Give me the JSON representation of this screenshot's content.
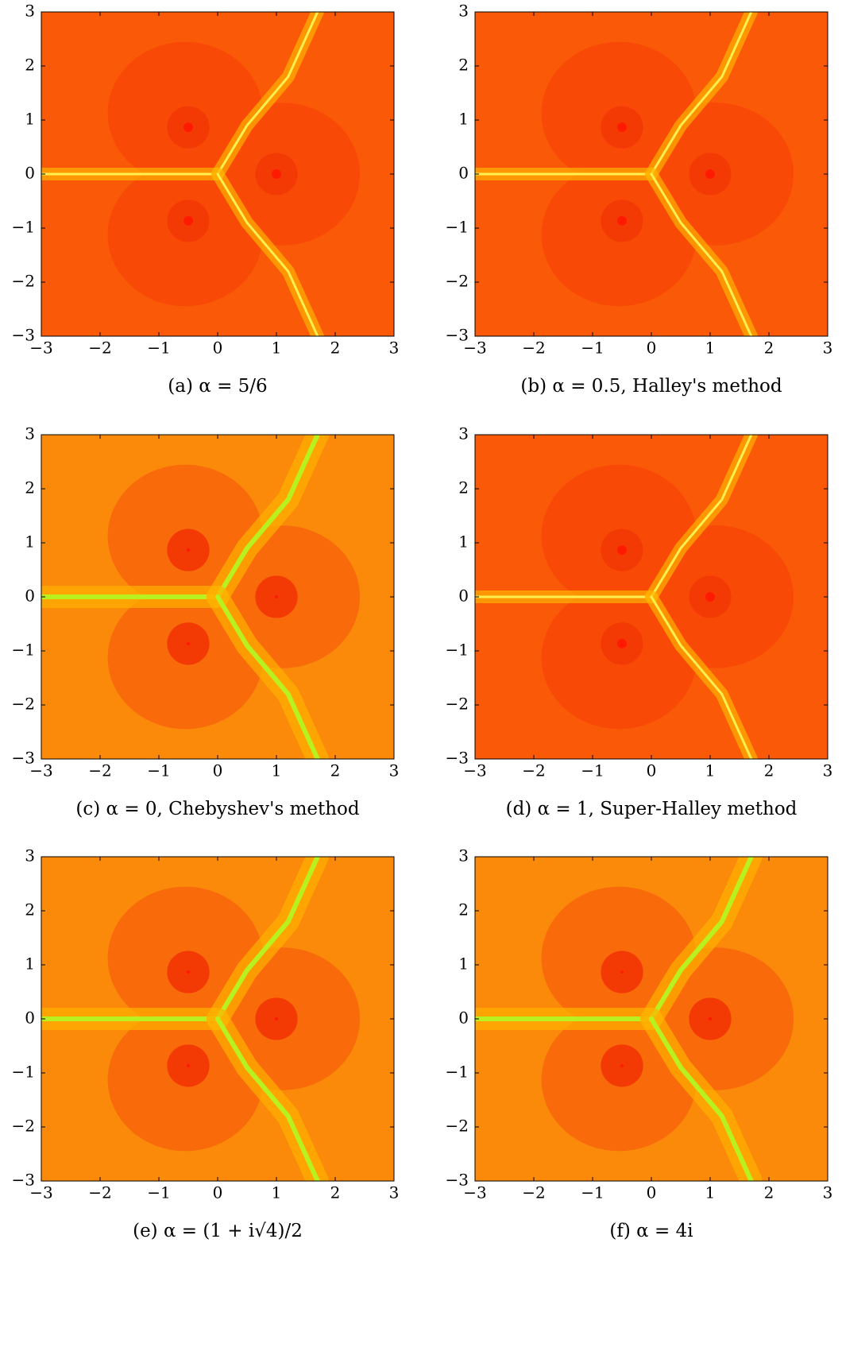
{
  "chart_data": [
    {
      "type": "fractal",
      "caption": "(a) α = 5/6",
      "xlim": [
        -3,
        3
      ],
      "ylim": [
        -3,
        3
      ],
      "xticks": [
        {
          "value": -3,
          "label": "−3"
        },
        {
          "value": -2,
          "label": "−2"
        },
        {
          "value": -1,
          "label": "−1"
        },
        0,
        1,
        2,
        3
      ],
      "yticks": [
        {
          "value": -3,
          "label": "−3"
        },
        {
          "value": -2,
          "label": "−2"
        },
        {
          "value": -1,
          "label": "−1"
        },
        0,
        1,
        2,
        3
      ]
    },
    {
      "type": "fractal",
      "caption": "(b) α = 0.5, Halley's method",
      "xlim": [
        -3,
        3
      ],
      "ylim": [
        -3,
        3
      ],
      "xticks": [
        {
          "value": -3,
          "label": "−3"
        },
        {
          "value": -2,
          "label": "−2"
        },
        {
          "value": -1,
          "label": "−1"
        },
        0,
        1,
        2,
        3
      ],
      "yticks": [
        {
          "value": -3,
          "label": "−3"
        },
        {
          "value": -2,
          "label": "−2"
        },
        {
          "value": -1,
          "label": "−1"
        },
        0,
        1,
        2,
        3
      ]
    },
    {
      "type": "fractal",
      "caption": "(c) α = 0, Chebyshev's method",
      "xlim": [
        -3,
        3
      ],
      "ylim": [
        -3,
        3
      ],
      "xticks": [
        {
          "value": -3,
          "label": "−3"
        },
        {
          "value": -2,
          "label": "−2"
        },
        {
          "value": -1,
          "label": "−1"
        },
        0,
        1,
        2,
        3
      ],
      "yticks": [
        {
          "value": -3,
          "label": "−3"
        },
        {
          "value": -2,
          "label": "−2"
        },
        {
          "value": -1,
          "label": "−1"
        },
        0,
        1,
        2,
        3
      ]
    },
    {
      "type": "fractal",
      "caption": "(d) α = 1, Super-Halley method",
      "xlim": [
        -3,
        3
      ],
      "ylim": [
        -3,
        3
      ],
      "xticks": [
        {
          "value": -3,
          "label": "−3"
        },
        {
          "value": -2,
          "label": "−2"
        },
        {
          "value": -1,
          "label": "−1"
        },
        0,
        1,
        2,
        3
      ],
      "yticks": [
        {
          "value": -3,
          "label": "−3"
        },
        {
          "value": -2,
          "label": "−2"
        },
        {
          "value": -1,
          "label": "−1"
        },
        0,
        1,
        2,
        3
      ]
    },
    {
      "type": "fractal",
      "caption": "(e) α = (1 + i√4)/2",
      "xlim": [
        -3,
        3
      ],
      "ylim": [
        -3,
        3
      ],
      "xticks": [
        {
          "value": -3,
          "label": "−3"
        },
        {
          "value": -2,
          "label": "−2"
        },
        {
          "value": -1,
          "label": "−1"
        },
        0,
        1,
        2,
        3
      ],
      "yticks": [
        {
          "value": -3,
          "label": "−3"
        },
        {
          "value": -2,
          "label": "−2"
        },
        {
          "value": -1,
          "label": "−1"
        },
        0,
        1,
        2,
        3
      ]
    },
    {
      "type": "fractal",
      "caption": "(f) α = 4i",
      "xlim": [
        -3,
        3
      ],
      "ylim": [
        -3,
        3
      ],
      "xticks": [
        {
          "value": -3,
          "label": "−3"
        },
        {
          "value": -2,
          "label": "−2"
        },
        {
          "value": -1,
          "label": "−1"
        },
        0,
        1,
        2,
        3
      ],
      "yticks": [
        {
          "value": -3,
          "label": "−3"
        },
        {
          "value": -2,
          "label": "−2"
        },
        {
          "value": -1,
          "label": "−1"
        },
        0,
        1,
        2,
        3
      ]
    }
  ]
}
